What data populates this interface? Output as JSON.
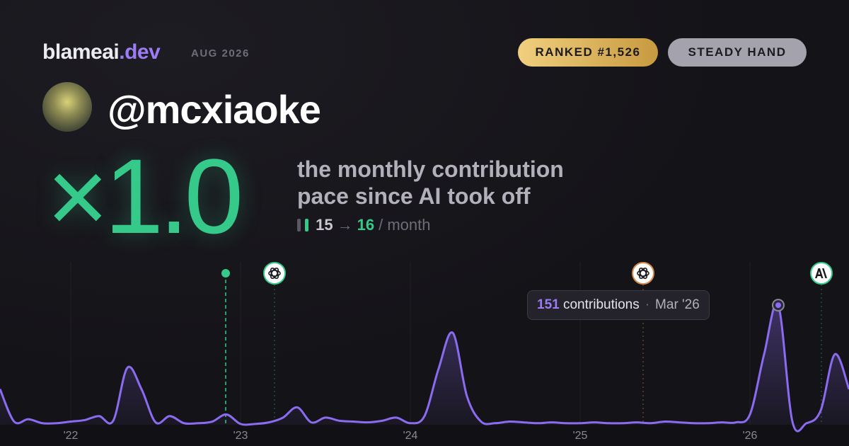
{
  "header": {
    "brand": "blameai",
    "brand_suffix": ".dev",
    "date": "AUG 2026",
    "rank": "RANKED #1,526",
    "style": "STEADY HAND"
  },
  "profile": {
    "handle": "@mcxiaoke",
    "multiplier": "×1.0",
    "subtitle_line1": "the monthly contribution",
    "subtitle_line2": "pace since AI took off",
    "pace_before": 15,
    "pace_arrow": "→",
    "pace_after": 16,
    "pace_unit": "/ month"
  },
  "chart_data": {
    "type": "line",
    "categories": [
      null,
      null,
      null,
      null,
      null,
      "'22",
      null,
      null,
      null,
      null,
      null,
      null,
      null,
      null,
      null,
      null,
      null,
      "'23",
      null,
      null,
      null,
      null,
      null,
      null,
      null,
      null,
      null,
      null,
      null,
      "'24",
      null,
      null,
      null,
      null,
      null,
      null,
      null,
      null,
      null,
      null,
      null,
      "'25",
      null,
      null,
      null,
      null,
      null,
      null,
      null,
      null,
      null,
      null,
      null,
      "'26",
      null,
      null,
      null,
      null,
      null,
      null,
      null
    ],
    "values": [
      45,
      4,
      7,
      2,
      2,
      4,
      6,
      11,
      5,
      72,
      45,
      3,
      11,
      2,
      2,
      4,
      13,
      1,
      1,
      3,
      9,
      22,
      3,
      9,
      5,
      4,
      3,
      5,
      9,
      2,
      11,
      71,
      116,
      36,
      4,
      2,
      4,
      3,
      2,
      3,
      2,
      2,
      3,
      2,
      2,
      3,
      2,
      4,
      3,
      2,
      2,
      3,
      3,
      13,
      89,
      151,
      4,
      2,
      18,
      89,
      45
    ],
    "color": "#8b6cf0",
    "ylim": [
      0,
      160
    ],
    "tooltip_unit": "contributions",
    "tooltip_date": "Mar '26"
  }
}
